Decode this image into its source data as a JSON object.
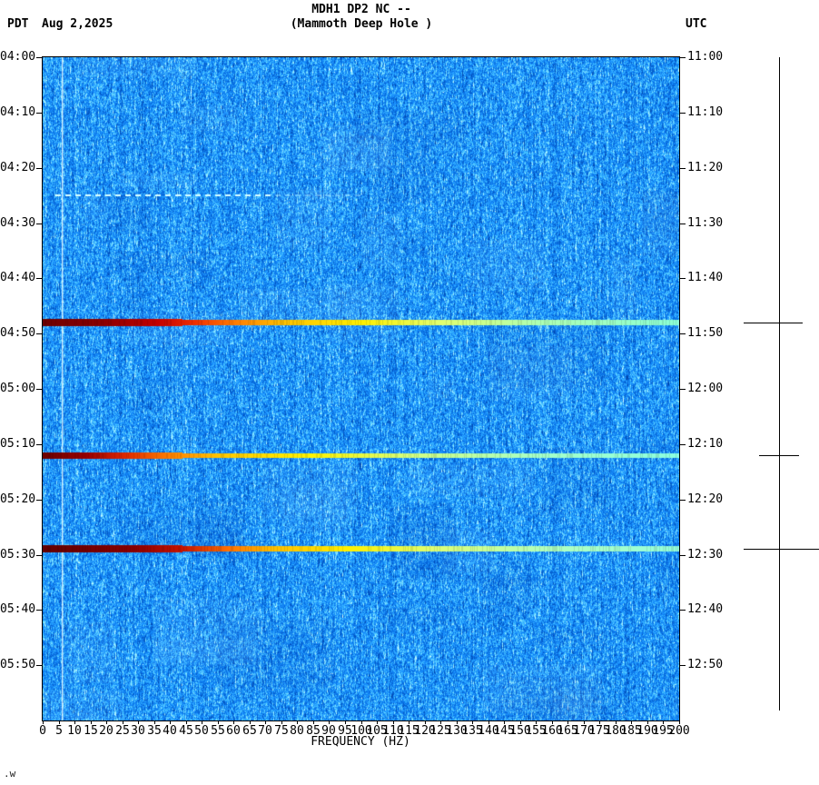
{
  "header": {
    "left_tz": "PDT",
    "date": "Aug 2,2025",
    "title": "MDH1 DP2 NC --",
    "subtitle": "(Mammoth Deep Hole )",
    "right_tz": "UTC"
  },
  "footer": {
    "note": ".w"
  },
  "chart_data": {
    "type": "heatmap",
    "title": "MDH1 DP2 NC -- (Mammoth Deep Hole )",
    "xlabel": "FREQUENCY (HZ)",
    "ylabel": "",
    "x_range_hz": [
      0,
      200
    ],
    "x_tick_step_hz": 5,
    "x_ticks": [
      0,
      5,
      10,
      15,
      20,
      25,
      30,
      35,
      40,
      45,
      50,
      55,
      60,
      65,
      70,
      75,
      80,
      85,
      90,
      95,
      100,
      105,
      110,
      115,
      120,
      125,
      130,
      135,
      140,
      145,
      150,
      155,
      160,
      165,
      170,
      175,
      180,
      185,
      190,
      195,
      200
    ],
    "time_start_pdt": "04:00",
    "time_end_pdt": "06:00",
    "left_time_labels": [
      "04:00",
      "04:10",
      "04:20",
      "04:30",
      "04:40",
      "04:50",
      "05:00",
      "05:10",
      "05:20",
      "05:30",
      "05:40",
      "05:50"
    ],
    "right_time_labels": [
      "11:00",
      "11:10",
      "11:20",
      "11:30",
      "11:40",
      "11:50",
      "12:00",
      "12:10",
      "12:20",
      "12:30",
      "12:40",
      "12:50"
    ],
    "background_description": "broadband blue seismic noise, vertically streaked",
    "background_base_color": "#1991FF",
    "noise": {
      "seed": 20250802
    },
    "calibration_line_hz": 6,
    "grid": false,
    "legend": false,
    "events": [
      {
        "time_pdt": "04:25",
        "time_utc": "11:25",
        "style": "dashed",
        "color": "#D8FFFF",
        "freq_start_hz": 4,
        "freq_end_hz": 73,
        "fade_end_hz": 100,
        "thickness_px": 2
      },
      {
        "time_pdt": "04:48",
        "time_utc": "11:48",
        "style": "solid",
        "thickness_px": 6,
        "sidebar_tick": [
          819,
          884
        ],
        "gradient": [
          [
            0,
            "#6E0000"
          ],
          [
            0.1,
            "#8F0000"
          ],
          [
            0.18,
            "#C40000"
          ],
          [
            0.24,
            "#F03000"
          ],
          [
            0.3,
            "#FF7A00"
          ],
          [
            0.38,
            "#FFC400"
          ],
          [
            0.5,
            "#FFF000"
          ],
          [
            0.62,
            "#E2FF6E"
          ],
          [
            0.78,
            "#AEFFB4"
          ],
          [
            1,
            "#8CFFD6"
          ]
        ]
      },
      {
        "time_pdt": "05:12",
        "time_utc": "12:12",
        "style": "solid",
        "thickness_px": 5,
        "sidebar_tick": [
          836,
          880
        ],
        "gradient": [
          [
            0,
            "#6E0000"
          ],
          [
            0.07,
            "#9C0000"
          ],
          [
            0.13,
            "#E02800"
          ],
          [
            0.2,
            "#FF8000"
          ],
          [
            0.28,
            "#FFC800"
          ],
          [
            0.42,
            "#FFF400"
          ],
          [
            0.58,
            "#D2FF82"
          ],
          [
            0.78,
            "#A6FFC8"
          ],
          [
            1,
            "#8CFFE0"
          ]
        ]
      },
      {
        "time_pdt": "05:29",
        "time_utc": "12:29",
        "style": "solid",
        "thickness_px": 6,
        "sidebar_tick": [
          819,
          902
        ],
        "gradient": [
          [
            0,
            "#640000"
          ],
          [
            0.14,
            "#8A0000"
          ],
          [
            0.22,
            "#C81400"
          ],
          [
            0.29,
            "#FF6E00"
          ],
          [
            0.36,
            "#FFBE00"
          ],
          [
            0.48,
            "#FFF200"
          ],
          [
            0.62,
            "#DCFF78"
          ],
          [
            0.8,
            "#B0FFC0"
          ],
          [
            1,
            "#96FFDC"
          ]
        ]
      }
    ]
  }
}
